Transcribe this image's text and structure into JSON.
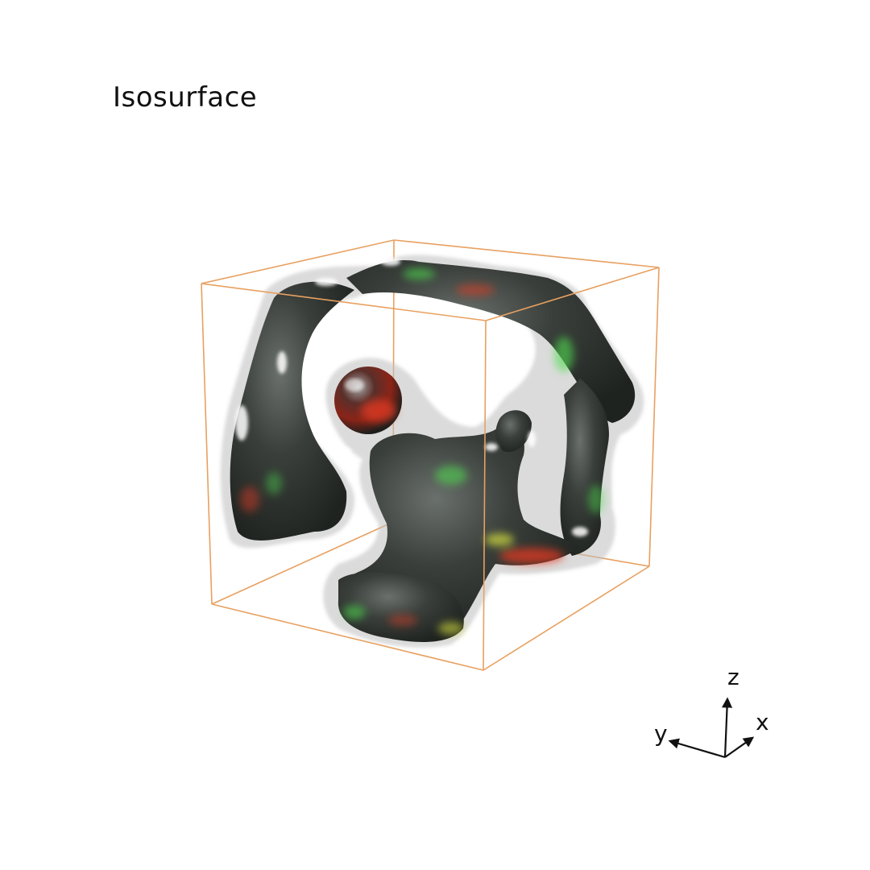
{
  "title": "Isosurface",
  "axes": {
    "x_label": "x",
    "y_label": "y",
    "z_label": "z"
  },
  "colors": {
    "background": "#ffffff",
    "bounding_box": "#e8a060",
    "surface_dark": "#2a2e2b",
    "surface_shell": "#c8c8c8",
    "highlight_green": "#4fdc4f",
    "highlight_red": "#e03a22"
  }
}
